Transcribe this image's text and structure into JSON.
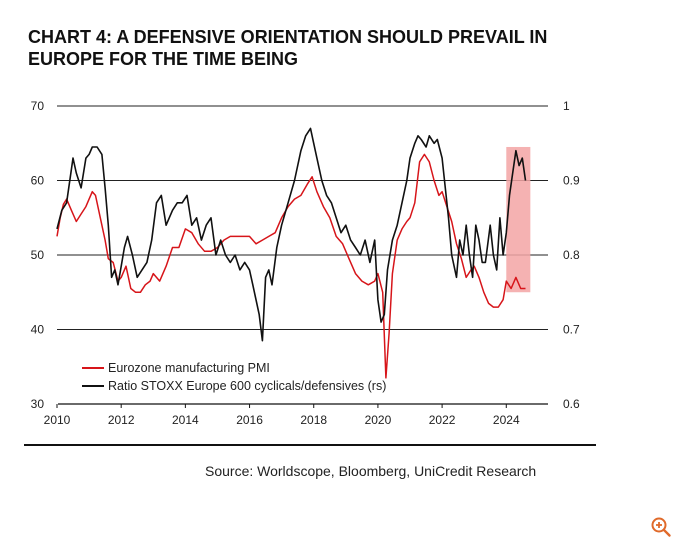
{
  "title_lines": [
    "CHART 4: A DEFENSIVE ORIENTATION SHOULD PREVAIL IN",
    "EUROPE FOR THE TIME BEING"
  ],
  "source": "Source: Worldscope, Bloomberg, UniCredit Research",
  "zoom_icon": "zoom-in-icon",
  "chart_data": {
    "type": "line",
    "title": "CHART 4: A DEFENSIVE ORIENTATION SHOULD PREVAIL IN EUROPE FOR THE TIME BEING",
    "xlabel": "",
    "ylabel": "",
    "xlim": [
      2010,
      2025.3
    ],
    "ylim": [
      30,
      70
    ],
    "y2lim": [
      0.6,
      1.0
    ],
    "xticks": [
      2010,
      2012,
      2014,
      2016,
      2018,
      2020,
      2022,
      2024
    ],
    "yticks": [
      30,
      40,
      50,
      60,
      70
    ],
    "y2ticks": [
      "0.6",
      "0.7",
      "0.8",
      "0.9",
      "1"
    ],
    "y2tick_values": [
      0.6,
      0.7,
      0.8,
      0.9,
      1.0
    ],
    "gridlines_y": [
      40,
      50,
      60,
      70
    ],
    "highlight": {
      "x_start": 2024.0,
      "x_end": 2024.75,
      "y_low": 45,
      "y_high": 64.5,
      "color": "#f3a5a5"
    },
    "legend_position": "bottom-left",
    "series": [
      {
        "name": "Eurozone manufacturing PMI",
        "axis": "left",
        "color": "#d7151a",
        "x": [
          2010.0,
          2010.1,
          2010.2,
          2010.3,
          2010.45,
          2010.6,
          2010.75,
          2010.9,
          2011.0,
          2011.1,
          2011.2,
          2011.35,
          2011.5,
          2011.6,
          2011.75,
          2011.9,
          2012.0,
          2012.15,
          2012.3,
          2012.45,
          2012.6,
          2012.75,
          2012.9,
          2013.0,
          2013.2,
          2013.4,
          2013.6,
          2013.8,
          2014.0,
          2014.2,
          2014.4,
          2014.6,
          2014.8,
          2015.0,
          2015.2,
          2015.4,
          2015.6,
          2015.8,
          2016.0,
          2016.2,
          2016.4,
          2016.6,
          2016.8,
          2017.0,
          2017.2,
          2017.4,
          2017.6,
          2017.8,
          2017.95,
          2018.1,
          2018.3,
          2018.5,
          2018.7,
          2018.9,
          2019.1,
          2019.3,
          2019.5,
          2019.7,
          2019.9,
          2020.0,
          2020.15,
          2020.25,
          2020.35,
          2020.45,
          2020.6,
          2020.75,
          2020.9,
          2021.0,
          2021.15,
          2021.3,
          2021.45,
          2021.6,
          2021.75,
          2021.9,
          2022.0,
          2022.15,
          2022.3,
          2022.45,
          2022.6,
          2022.75,
          2022.9,
          2023.0,
          2023.15,
          2023.3,
          2023.45,
          2023.6,
          2023.75,
          2023.9,
          2024.0,
          2024.15,
          2024.3,
          2024.45,
          2024.6
        ],
        "y": [
          52.5,
          55.0,
          56.8,
          57.5,
          56.0,
          54.5,
          55.5,
          56.5,
          57.5,
          58.5,
          58.0,
          55.0,
          52.0,
          49.5,
          49.0,
          46.5,
          47.0,
          48.5,
          45.5,
          45.0,
          45.0,
          46.0,
          46.5,
          47.5,
          46.5,
          48.5,
          51.0,
          51.0,
          53.5,
          53.0,
          51.5,
          50.5,
          50.5,
          51.0,
          52.0,
          52.5,
          52.5,
          52.5,
          52.5,
          51.5,
          52.0,
          52.5,
          53.0,
          55.0,
          56.5,
          57.5,
          58.0,
          59.5,
          60.5,
          58.5,
          56.5,
          55.0,
          52.5,
          51.5,
          49.5,
          47.5,
          46.5,
          46.0,
          46.5,
          47.5,
          45.0,
          33.5,
          39.5,
          47.5,
          52.0,
          53.5,
          54.5,
          55.0,
          57.0,
          62.5,
          63.5,
          62.5,
          60.0,
          58.0,
          58.5,
          56.5,
          54.5,
          51.5,
          49.5,
          47.0,
          48.0,
          48.5,
          47.0,
          45.0,
          43.5,
          43.0,
          43.0,
          44.0,
          46.5,
          45.5,
          47.0,
          45.5,
          45.5
        ]
      },
      {
        "name": "Ratio STOXX Europe 600 cyclicals/defensives (rs)",
        "axis": "right",
        "color": "#111111",
        "x": [
          2010.0,
          2010.15,
          2010.3,
          2010.4,
          2010.5,
          2010.6,
          2010.75,
          2010.9,
          2011.0,
          2011.1,
          2011.25,
          2011.4,
          2011.5,
          2011.6,
          2011.7,
          2011.8,
          2011.9,
          2012.0,
          2012.1,
          2012.2,
          2012.35,
          2012.5,
          2012.65,
          2012.8,
          2012.95,
          2013.1,
          2013.25,
          2013.4,
          2013.6,
          2013.75,
          2013.9,
          2014.05,
          2014.2,
          2014.35,
          2014.5,
          2014.65,
          2014.8,
          2014.95,
          2015.1,
          2015.25,
          2015.4,
          2015.55,
          2015.7,
          2015.85,
          2016.0,
          2016.1,
          2016.2,
          2016.3,
          2016.4,
          2016.5,
          2016.6,
          2016.7,
          2016.85,
          2017.0,
          2017.2,
          2017.4,
          2017.6,
          2017.75,
          2017.9,
          2018.0,
          2018.1,
          2018.25,
          2018.4,
          2018.55,
          2018.7,
          2018.85,
          2019.0,
          2019.15,
          2019.3,
          2019.45,
          2019.6,
          2019.75,
          2019.9,
          2020.0,
          2020.1,
          2020.2,
          2020.3,
          2020.45,
          2020.6,
          2020.75,
          2020.9,
          2021.0,
          2021.15,
          2021.25,
          2021.35,
          2021.5,
          2021.6,
          2021.75,
          2021.85,
          2022.0,
          2022.1,
          2022.2,
          2022.3,
          2022.45,
          2022.55,
          2022.65,
          2022.75,
          2022.85,
          2022.95,
          2023.05,
          2023.15,
          2023.25,
          2023.35,
          2023.5,
          2023.6,
          2023.7,
          2023.8,
          2023.9,
          2024.0,
          2024.1,
          2024.2,
          2024.3,
          2024.4,
          2024.5,
          2024.6
        ],
        "y": [
          0.835,
          0.86,
          0.87,
          0.9,
          0.93,
          0.91,
          0.89,
          0.93,
          0.935,
          0.945,
          0.945,
          0.935,
          0.89,
          0.84,
          0.77,
          0.78,
          0.76,
          0.785,
          0.81,
          0.825,
          0.8,
          0.77,
          0.78,
          0.79,
          0.82,
          0.87,
          0.88,
          0.84,
          0.86,
          0.87,
          0.87,
          0.88,
          0.84,
          0.85,
          0.82,
          0.84,
          0.85,
          0.8,
          0.82,
          0.8,
          0.79,
          0.8,
          0.78,
          0.79,
          0.78,
          0.76,
          0.74,
          0.72,
          0.685,
          0.77,
          0.78,
          0.76,
          0.81,
          0.84,
          0.87,
          0.9,
          0.94,
          0.96,
          0.97,
          0.95,
          0.93,
          0.9,
          0.88,
          0.87,
          0.85,
          0.83,
          0.84,
          0.82,
          0.81,
          0.8,
          0.82,
          0.79,
          0.82,
          0.74,
          0.71,
          0.72,
          0.78,
          0.82,
          0.84,
          0.87,
          0.9,
          0.93,
          0.95,
          0.96,
          0.955,
          0.945,
          0.96,
          0.95,
          0.955,
          0.93,
          0.89,
          0.85,
          0.8,
          0.77,
          0.82,
          0.8,
          0.84,
          0.8,
          0.77,
          0.84,
          0.82,
          0.79,
          0.79,
          0.84,
          0.8,
          0.78,
          0.85,
          0.8,
          0.83,
          0.88,
          0.91,
          0.94,
          0.92,
          0.93,
          0.9
        ]
      }
    ]
  }
}
